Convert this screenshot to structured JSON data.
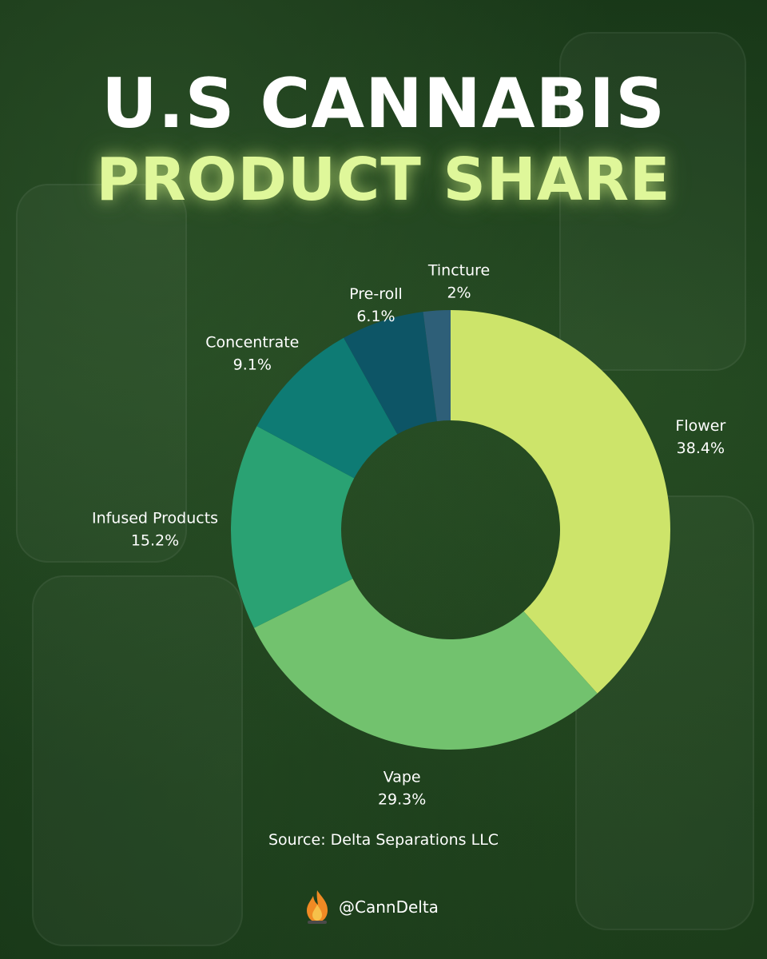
{
  "header": {
    "title_line1": "U.S CANNABIS",
    "title_line2": "PRODUCT SHARE"
  },
  "chart_data": {
    "type": "pie",
    "style": "donut",
    "title": "U.S CANNABIS PRODUCT SHARE",
    "unit": "%",
    "slices": [
      {
        "label": "Flower",
        "value": 38.4,
        "display": "38.4%",
        "color": "#cde46a"
      },
      {
        "label": "Vape",
        "value": 29.3,
        "display": "29.3%",
        "color": "#72c26e"
      },
      {
        "label": "Infused Products",
        "value": 15.2,
        "display": "15.2%",
        "color": "#2aa273"
      },
      {
        "label": "Concentrate",
        "value": 9.1,
        "display": "9.1%",
        "color": "#0e7b74"
      },
      {
        "label": "Pre-roll",
        "value": 6.1,
        "display": "6.1%",
        "color": "#0d5566"
      },
      {
        "label": "Tincture",
        "value": 2,
        "display": "2%",
        "color": "#2e5f78"
      }
    ],
    "start": "top",
    "direction": "clockwise",
    "legend": "none"
  },
  "footer": {
    "source": "Source: Delta Separations LLC",
    "handle": "@CannDelta"
  },
  "colors": {
    "background": "#1b3f1b",
    "title_primary": "#ffffff",
    "title_accent": "#dff79a"
  },
  "icons": {
    "logo": "flame-logo-icon"
  }
}
